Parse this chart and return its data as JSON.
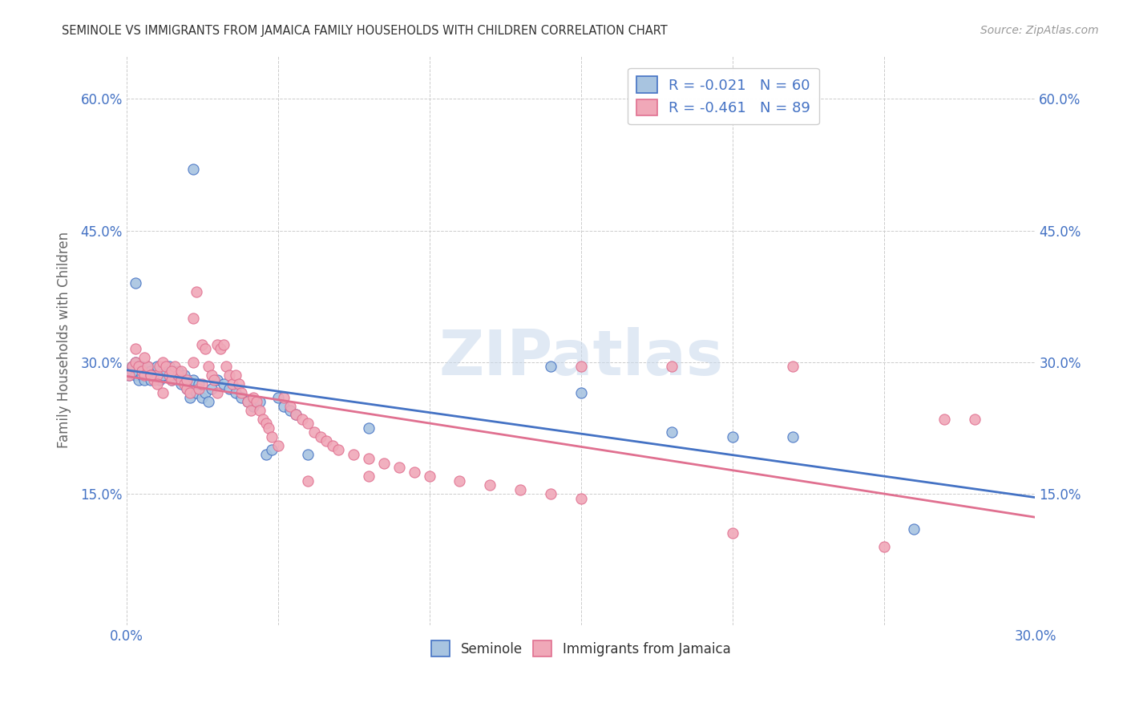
{
  "title": "SEMINOLE VS IMMIGRANTS FROM JAMAICA FAMILY HOUSEHOLDS WITH CHILDREN CORRELATION CHART",
  "source": "Source: ZipAtlas.com",
  "ylabel": "Family Households with Children",
  "xlim": [
    0.0,
    0.3
  ],
  "ylim": [
    0.0,
    0.65
  ],
  "xticks": [
    0.0,
    0.05,
    0.1,
    0.15,
    0.2,
    0.25,
    0.3
  ],
  "xtick_labels": [
    "0.0%",
    "",
    "",
    "",
    "",
    "",
    "30.0%"
  ],
  "yticks": [
    0.0,
    0.15,
    0.3,
    0.45,
    0.6
  ],
  "ytick_labels": [
    "",
    "15.0%",
    "30.0%",
    "45.0%",
    "60.0%"
  ],
  "seminole_color": "#a8c4e0",
  "jamaica_color": "#f0a8b8",
  "seminole_line_color": "#4472c4",
  "jamaica_line_color": "#e07090",
  "watermark": "ZIPatlas",
  "legend_R_seminole": "-0.021",
  "legend_N_seminole": "60",
  "legend_R_jamaica": "-0.461",
  "legend_N_jamaica": "89",
  "legend_text_color": "#4472c4",
  "title_color": "#333333",
  "source_color": "#999999",
  "ylabel_color": "#666666",
  "tick_color": "#4472c4",
  "grid_color": "#cccccc",
  "background_color": "#ffffff",
  "seminole_x": [
    0.001,
    0.002,
    0.002,
    0.003,
    0.003,
    0.004,
    0.004,
    0.005,
    0.005,
    0.006,
    0.006,
    0.007,
    0.007,
    0.008,
    0.008,
    0.009,
    0.01,
    0.01,
    0.011,
    0.012,
    0.013,
    0.014,
    0.015,
    0.016,
    0.017,
    0.018,
    0.019,
    0.02,
    0.021,
    0.022,
    0.023,
    0.024,
    0.025,
    0.026,
    0.027,
    0.028,
    0.03,
    0.032,
    0.034,
    0.036,
    0.038,
    0.04,
    0.042,
    0.044,
    0.046,
    0.048,
    0.05,
    0.052,
    0.054,
    0.056,
    0.003,
    0.022,
    0.06,
    0.08,
    0.14,
    0.15,
    0.18,
    0.2,
    0.22,
    0.26
  ],
  "seminole_y": [
    0.285,
    0.29,
    0.295,
    0.3,
    0.285,
    0.295,
    0.28,
    0.285,
    0.295,
    0.28,
    0.29,
    0.285,
    0.295,
    0.28,
    0.29,
    0.285,
    0.29,
    0.295,
    0.28,
    0.285,
    0.29,
    0.295,
    0.28,
    0.285,
    0.29,
    0.275,
    0.285,
    0.27,
    0.26,
    0.28,
    0.265,
    0.275,
    0.26,
    0.265,
    0.255,
    0.27,
    0.28,
    0.275,
    0.27,
    0.265,
    0.26,
    0.255,
    0.25,
    0.255,
    0.195,
    0.2,
    0.26,
    0.25,
    0.245,
    0.24,
    0.39,
    0.52,
    0.195,
    0.225,
    0.295,
    0.265,
    0.22,
    0.215,
    0.215,
    0.11
  ],
  "jamaica_x": [
    0.001,
    0.002,
    0.003,
    0.004,
    0.005,
    0.006,
    0.007,
    0.008,
    0.009,
    0.01,
    0.011,
    0.012,
    0.013,
    0.014,
    0.015,
    0.016,
    0.017,
    0.018,
    0.019,
    0.02,
    0.021,
    0.022,
    0.022,
    0.023,
    0.024,
    0.025,
    0.026,
    0.027,
    0.028,
    0.029,
    0.03,
    0.031,
    0.032,
    0.033,
    0.034,
    0.035,
    0.036,
    0.037,
    0.038,
    0.04,
    0.041,
    0.042,
    0.043,
    0.044,
    0.045,
    0.046,
    0.047,
    0.048,
    0.05,
    0.052,
    0.054,
    0.056,
    0.058,
    0.06,
    0.062,
    0.064,
    0.066,
    0.068,
    0.07,
    0.075,
    0.08,
    0.085,
    0.09,
    0.095,
    0.1,
    0.11,
    0.12,
    0.13,
    0.14,
    0.15,
    0.003,
    0.006,
    0.008,
    0.01,
    0.012,
    0.015,
    0.018,
    0.02,
    0.025,
    0.03,
    0.06,
    0.08,
    0.15,
    0.18,
    0.2,
    0.22,
    0.25,
    0.27,
    0.28
  ],
  "jamaica_y": [
    0.285,
    0.295,
    0.3,
    0.295,
    0.29,
    0.285,
    0.295,
    0.285,
    0.28,
    0.285,
    0.295,
    0.3,
    0.295,
    0.285,
    0.28,
    0.295,
    0.285,
    0.28,
    0.275,
    0.27,
    0.265,
    0.35,
    0.3,
    0.38,
    0.27,
    0.32,
    0.315,
    0.295,
    0.285,
    0.28,
    0.32,
    0.315,
    0.32,
    0.295,
    0.285,
    0.275,
    0.285,
    0.275,
    0.265,
    0.255,
    0.245,
    0.26,
    0.255,
    0.245,
    0.235,
    0.23,
    0.225,
    0.215,
    0.205,
    0.26,
    0.25,
    0.24,
    0.235,
    0.23,
    0.22,
    0.215,
    0.21,
    0.205,
    0.2,
    0.195,
    0.19,
    0.185,
    0.18,
    0.175,
    0.17,
    0.165,
    0.16,
    0.155,
    0.15,
    0.145,
    0.315,
    0.305,
    0.285,
    0.275,
    0.265,
    0.29,
    0.29,
    0.28,
    0.275,
    0.265,
    0.165,
    0.17,
    0.295,
    0.295,
    0.105,
    0.295,
    0.09,
    0.235,
    0.235
  ]
}
